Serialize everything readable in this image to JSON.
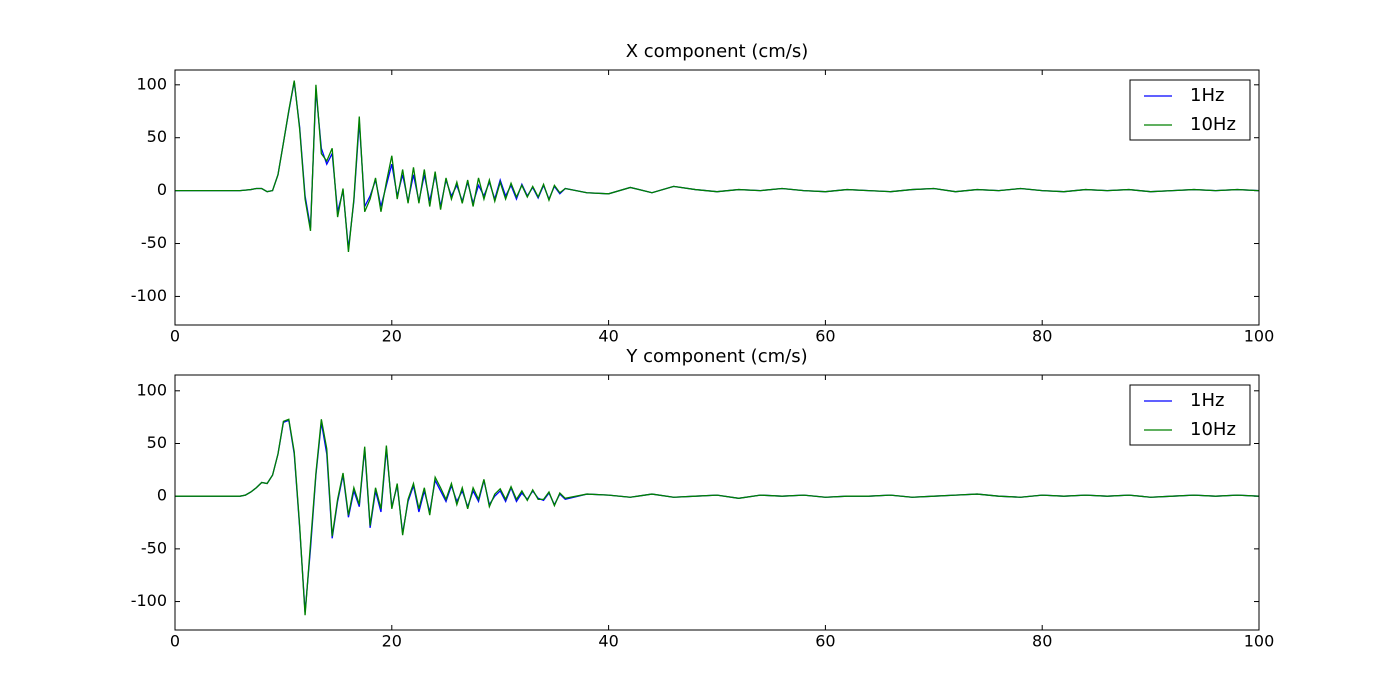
{
  "chart_data": [
    {
      "type": "line",
      "title": "X component (cm/s)",
      "x": [
        0,
        6,
        6.5,
        7,
        7.5,
        8,
        8.5,
        9,
        9.5,
        10,
        10.5,
        11,
        11.5,
        12,
        12.5,
        13,
        13.5,
        14,
        14.5,
        15,
        15.5,
        16,
        16.5,
        17,
        17.5,
        18,
        18.5,
        19,
        19.5,
        20,
        20.5,
        21,
        21.5,
        22,
        22.5,
        23,
        23.5,
        24,
        24.5,
        25,
        25.5,
        26,
        26.5,
        27,
        27.5,
        28,
        28.5,
        29,
        29.5,
        30,
        30.5,
        31,
        31.5,
        32,
        32.5,
        33,
        33.5,
        34,
        34.5,
        35,
        35.5,
        36,
        38,
        40,
        42,
        44,
        46,
        48,
        50,
        52,
        54,
        56,
        58,
        60,
        62,
        64,
        66,
        68,
        70,
        72,
        74,
        76,
        78,
        80,
        82,
        84,
        86,
        88,
        90,
        92,
        94,
        96,
        98,
        100
      ],
      "series": [
        {
          "name": "1Hz",
          "color": "#0000ff",
          "values": [
            0,
            0,
            0.5,
            1,
            2,
            2,
            -1,
            0,
            15,
            45,
            75,
            103,
            60,
            -5,
            -35,
            95,
            40,
            25,
            35,
            -20,
            0,
            -55,
            -10,
            65,
            -15,
            -5,
            10,
            -15,
            5,
            25,
            -5,
            15,
            -10,
            15,
            -10,
            15,
            -10,
            15,
            -15,
            10,
            -5,
            5,
            -10,
            8,
            -12,
            5,
            -5,
            8,
            -8,
            10,
            -5,
            5,
            -8,
            6,
            -5,
            3,
            -7,
            5,
            -8,
            4,
            -3,
            2,
            -2,
            -3,
            3,
            -2,
            4,
            1,
            -1,
            1,
            0,
            2,
            0,
            -1,
            1,
            0,
            -1,
            1,
            2,
            -1,
            1,
            0,
            2,
            0,
            -1,
            1,
            0,
            1,
            -1,
            0,
            1,
            0,
            1,
            0
          ]
        },
        {
          "name": "10Hz",
          "color": "#008000",
          "values": [
            0,
            0,
            0.5,
            1,
            2,
            2,
            -1,
            0,
            15,
            45,
            76,
            104,
            58,
            -8,
            -38,
            100,
            35,
            28,
            40,
            -25,
            2,
            -58,
            -8,
            70,
            -20,
            -8,
            12,
            -20,
            8,
            33,
            -8,
            20,
            -12,
            22,
            -12,
            20,
            -15,
            18,
            -18,
            12,
            -8,
            8,
            -12,
            10,
            -15,
            12,
            -8,
            10,
            -10,
            8,
            -8,
            7,
            -6,
            5,
            -6,
            4,
            -6,
            6,
            -9,
            5,
            -2,
            2,
            -2,
            -3,
            3,
            -2,
            4,
            1,
            -1,
            1,
            0,
            2,
            0,
            -1,
            1,
            0,
            -1,
            1,
            2,
            -1,
            1,
            0,
            2,
            0,
            -1,
            1,
            0,
            1,
            -1,
            0,
            1,
            0,
            1,
            0
          ]
        }
      ],
      "xlim": [
        0,
        100
      ],
      "xticks": [
        0,
        20,
        40,
        60,
        80,
        100
      ],
      "ylim": [
        -127,
        114
      ],
      "yticks": [
        -100,
        -50,
        0,
        50,
        100
      ],
      "legend": "upper right"
    },
    {
      "type": "line",
      "title": "Y component (cm/s)",
      "x": [
        0,
        6,
        6.5,
        7,
        7.5,
        8,
        8.5,
        9,
        9.5,
        10,
        10.5,
        11,
        11.5,
        12,
        12.5,
        13,
        13.5,
        14,
        14.5,
        15,
        15.5,
        16,
        16.5,
        17,
        17.5,
        18,
        18.5,
        19,
        19.5,
        20,
        20.5,
        21,
        21.5,
        22,
        22.5,
        23,
        23.5,
        24,
        24.5,
        25,
        25.5,
        26,
        26.5,
        27,
        27.5,
        28,
        28.5,
        29,
        29.5,
        30,
        30.5,
        31,
        31.5,
        32,
        32.5,
        33,
        33.5,
        34,
        34.5,
        35,
        35.5,
        36,
        38,
        40,
        42,
        44,
        46,
        48,
        50,
        52,
        54,
        56,
        58,
        60,
        62,
        64,
        66,
        68,
        70,
        72,
        74,
        76,
        78,
        80,
        82,
        84,
        86,
        88,
        90,
        92,
        94,
        96,
        98,
        100
      ],
      "series": [
        {
          "name": "1Hz",
          "color": "#0000ff",
          "values": [
            0,
            0,
            1,
            4,
            8,
            13,
            12,
            20,
            40,
            70,
            72,
            40,
            -30,
            -110,
            -50,
            20,
            70,
            40,
            -40,
            -5,
            20,
            -20,
            5,
            -10,
            45,
            -30,
            5,
            -15,
            45,
            -10,
            10,
            -35,
            -5,
            10,
            -15,
            5,
            -15,
            15,
            5,
            -5,
            10,
            -5,
            5,
            -10,
            5,
            -5,
            15,
            -8,
            0,
            5,
            -5,
            8,
            -5,
            3,
            -3,
            5,
            -2,
            -4,
            3,
            -8,
            2,
            -3,
            2,
            1,
            -1,
            2,
            -1,
            0,
            1,
            -2,
            1,
            0,
            1,
            -1,
            0,
            0,
            1,
            -1,
            0,
            1,
            2,
            0,
            -1,
            1,
            0,
            1,
            0,
            1,
            -1,
            0,
            1,
            0,
            1,
            0
          ]
        },
        {
          "name": "10Hz",
          "color": "#008000",
          "values": [
            0,
            0,
            1,
            4,
            8,
            13,
            12,
            20,
            40,
            71,
            73,
            42,
            -28,
            -113,
            -45,
            22,
            73,
            45,
            -38,
            -3,
            22,
            -18,
            8,
            -8,
            47,
            -28,
            8,
            -12,
            48,
            -12,
            12,
            -37,
            -3,
            12,
            -12,
            8,
            -18,
            18,
            8,
            -3,
            12,
            -8,
            8,
            -12,
            8,
            -3,
            16,
            -10,
            2,
            7,
            -3,
            9,
            -3,
            5,
            -4,
            6,
            -3,
            -3,
            4,
            -9,
            3,
            -2,
            2,
            1,
            -1,
            2,
            -1,
            0,
            1,
            -2,
            1,
            0,
            1,
            -1,
            0,
            0,
            1,
            -1,
            0,
            1,
            2,
            0,
            -1,
            1,
            0,
            1,
            0,
            1,
            -1,
            0,
            1,
            0,
            1,
            0
          ]
        }
      ],
      "xlim": [
        0,
        100
      ],
      "xticks": [
        0,
        20,
        40,
        60,
        80,
        100
      ],
      "ylim": [
        -127,
        115
      ],
      "yticks": [
        -100,
        -50,
        0,
        50,
        100
      ],
      "legend": "upper right"
    }
  ]
}
